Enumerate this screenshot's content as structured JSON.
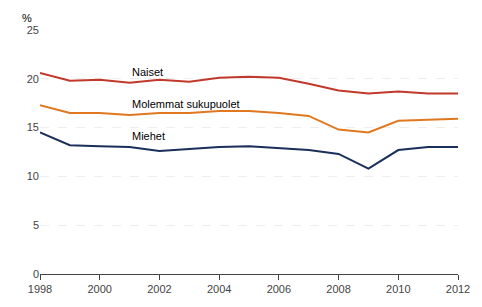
{
  "chart_data": {
    "type": "line",
    "y_label": "%",
    "x": [
      1998,
      1999,
      2000,
      2001,
      2002,
      2003,
      2004,
      2005,
      2006,
      2007,
      2008,
      2009,
      2010,
      2011,
      2012
    ],
    "series": [
      {
        "name": "Naiset",
        "color": "#c0392b",
        "values": [
          20.6,
          19.8,
          19.9,
          19.6,
          19.9,
          19.7,
          20.1,
          20.2,
          20.1,
          19.5,
          18.8,
          18.5,
          18.7,
          18.5,
          18.5
        ]
      },
      {
        "name": "Molemmat sukupuolet",
        "color": "#e07820",
        "values": [
          17.3,
          16.5,
          16.5,
          16.3,
          16.5,
          16.5,
          16.7,
          16.7,
          16.5,
          16.2,
          14.8,
          14.5,
          15.7,
          15.8,
          15.9
        ]
      },
      {
        "name": "Miehet",
        "color": "#1a2f5a",
        "values": [
          14.5,
          13.2,
          13.1,
          13.0,
          12.6,
          12.8,
          13.0,
          13.1,
          12.9,
          12.7,
          12.3,
          10.8,
          12.7,
          13.0,
          13.0
        ]
      }
    ],
    "xlim": [
      1998,
      2012
    ],
    "xticks": [
      1998,
      2000,
      2002,
      2004,
      2006,
      2008,
      2010,
      2012
    ],
    "ylim": [
      0,
      25
    ],
    "yticks": [
      0,
      5,
      10,
      15,
      20,
      25
    ],
    "grid": true
  }
}
